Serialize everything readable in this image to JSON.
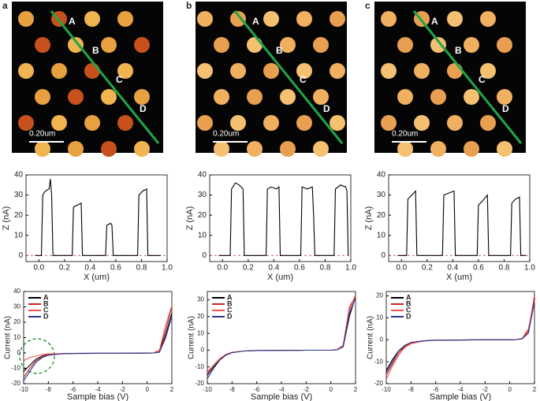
{
  "panels": [
    {
      "letter": "a",
      "points": [
        "A",
        "B",
        "C",
        "D"
      ],
      "scale_bar": "0.20um"
    },
    {
      "letter": "b",
      "points": [
        "A",
        "B",
        "C",
        "D"
      ],
      "scale_bar": "0.20um"
    },
    {
      "letter": "c",
      "points": [
        "A",
        "B",
        "C",
        "D"
      ],
      "scale_bar": "0.20um"
    }
  ],
  "chart_data": [
    {
      "type": "line",
      "xlabel": "X (um)",
      "ylabel": "Z (nA)",
      "color": "#000000",
      "baseline": 0,
      "x": [
        -0.03,
        0.02,
        0.03,
        0.05,
        0.08,
        0.09,
        0.1,
        0.11,
        0.26,
        0.27,
        0.3,
        0.33,
        0.34,
        0.52,
        0.53,
        0.56,
        0.57,
        0.58,
        0.77,
        0.78,
        0.81,
        0.84,
        0.85,
        0.95
      ],
      "values": [
        0,
        0,
        30,
        32,
        33,
        38,
        30,
        0,
        0,
        24,
        25,
        26,
        0,
        0,
        15,
        16,
        15,
        0,
        0,
        30,
        32,
        33,
        0,
        0
      ],
      "xlim": [
        -0.1,
        1.0
      ],
      "ylim": [
        -3,
        40
      ],
      "xticks": [
        {
          "value": 0,
          "label": "0.0"
        },
        0.2,
        0.4,
        0.6,
        0.8,
        {
          "value": 1,
          "label": "1.0"
        }
      ],
      "yticks": [
        0,
        10,
        20,
        30,
        40
      ]
    },
    {
      "type": "line",
      "xlabel": "X (um)",
      "ylabel": "Z (nA)",
      "color": "#000000",
      "baseline": 0,
      "x": [
        -0.03,
        0.06,
        0.07,
        0.1,
        0.13,
        0.16,
        0.17,
        0.34,
        0.35,
        0.38,
        0.42,
        0.44,
        0.45,
        0.61,
        0.62,
        0.66,
        0.7,
        0.71,
        0.72,
        0.87,
        0.88,
        0.92,
        0.96,
        0.97,
        0.98
      ],
      "values": [
        0,
        0,
        33,
        36,
        35,
        33,
        0,
        0,
        33,
        34,
        33,
        34,
        0,
        0,
        34,
        33,
        34,
        20,
        0,
        0,
        33,
        35,
        34,
        32,
        0
      ],
      "xlim": [
        -0.1,
        1.0
      ],
      "ylim": [
        -3,
        40
      ],
      "xticks": [
        {
          "value": 0,
          "label": "0.0"
        },
        0.2,
        0.4,
        0.6,
        0.8,
        {
          "value": 1,
          "label": "1.0"
        }
      ],
      "yticks": [
        0,
        10,
        20,
        30,
        40
      ]
    },
    {
      "type": "line",
      "xlabel": "X (um)",
      "ylabel": "Z (nA)",
      "color": "#000000",
      "baseline": 0,
      "x": [
        -0.03,
        0.04,
        0.05,
        0.08,
        0.11,
        0.12,
        0.32,
        0.33,
        0.37,
        0.41,
        0.42,
        0.59,
        0.6,
        0.63,
        0.67,
        0.68,
        0.85,
        0.86,
        0.89,
        0.92,
        0.93,
        0.97
      ],
      "values": [
        0,
        0,
        28,
        30,
        32,
        0,
        0,
        30,
        31,
        32,
        0,
        0,
        25,
        27,
        30,
        0,
        0,
        26,
        28,
        29,
        0,
        0
      ],
      "xlim": [
        -0.1,
        1.0
      ],
      "ylim": [
        -3,
        40
      ],
      "xticks": [
        {
          "value": 0,
          "label": "0.0"
        },
        0.2,
        0.4,
        0.6,
        0.8,
        {
          "value": 1,
          "label": "1.0"
        }
      ],
      "yticks": [
        0,
        10,
        20,
        30,
        40
      ]
    },
    {
      "type": "line",
      "xlabel": "Sample bias (V)",
      "ylabel": "Current (nA)",
      "legend": "upper left",
      "x": [
        -10,
        -9.5,
        -9,
        -8.5,
        -8,
        -7,
        -6,
        -4,
        -2,
        0,
        0.5,
        1,
        1.5,
        2
      ],
      "series": [
        {
          "name": "A",
          "color": "#000000",
          "values": [
            -12,
            -8,
            -4,
            -2,
            -1,
            -0.5,
            -0.3,
            -0.2,
            -0.2,
            -0.1,
            0,
            0.5,
            12,
            26
          ]
        },
        {
          "name": "B",
          "color": "#c62828",
          "values": [
            -16,
            -10,
            -5,
            -2.5,
            -1,
            -0.5,
            -0.3,
            -0.2,
            -0.2,
            -0.1,
            0,
            1,
            15,
            30
          ]
        },
        {
          "name": "C",
          "color": "#ef5350",
          "values": [
            -5,
            -3,
            -2,
            -1,
            -0.6,
            -0.4,
            -0.3,
            -0.2,
            -0.2,
            -0.1,
            0,
            2,
            18,
            31
          ]
        },
        {
          "name": "D",
          "color": "#283593",
          "values": [
            -18,
            -12,
            -6,
            -3,
            -1.5,
            -0.6,
            -0.3,
            -0.2,
            -0.2,
            -0.1,
            0,
            0.5,
            10,
            24
          ]
        }
      ],
      "xlim": [
        -10,
        2
      ],
      "ylim": [
        -20,
        40
      ],
      "xticks": [
        -10,
        -8,
        -6,
        -4,
        -2,
        0,
        2
      ],
      "yticks": [
        -20,
        -10,
        0,
        10,
        20,
        30,
        40
      ]
    },
    {
      "type": "line",
      "xlabel": "Sample bias (V)",
      "ylabel": "Current (nA)",
      "legend": "upper left",
      "x": [
        -10,
        -9.5,
        -9,
        -8.5,
        -8,
        -7,
        -6,
        -4,
        -2,
        0,
        0.5,
        1,
        1.5,
        2
      ],
      "series": [
        {
          "name": "A",
          "color": "#000000",
          "values": [
            -15,
            -10,
            -6,
            -3,
            -1.5,
            -0.5,
            -0.2,
            -0.1,
            0,
            0,
            0.2,
            2,
            20,
            32
          ]
        },
        {
          "name": "B",
          "color": "#c62828",
          "values": [
            -14,
            -9,
            -5,
            -3,
            -1.5,
            -0.5,
            -0.2,
            -0.1,
            0,
            0,
            0.3,
            3,
            24,
            33
          ]
        },
        {
          "name": "C",
          "color": "#ef5350",
          "values": [
            -13,
            -9,
            -5,
            -2.5,
            -1.2,
            -0.5,
            -0.2,
            -0.1,
            0,
            0,
            0.3,
            3,
            26,
            32
          ]
        },
        {
          "name": "D",
          "color": "#283593",
          "values": [
            -17,
            -11,
            -6,
            -3,
            -1.5,
            -0.5,
            -0.2,
            -0.1,
            0,
            0,
            0.2,
            2,
            22,
            31
          ]
        }
      ],
      "xlim": [
        -10,
        2
      ],
      "ylim": [
        -20,
        35
      ],
      "xticks": [
        -10,
        -8,
        -6,
        -4,
        -2,
        0,
        2
      ],
      "yticks": [
        -20,
        -10,
        0,
        10,
        20,
        30
      ]
    },
    {
      "type": "line",
      "xlabel": "Sample bias (V)",
      "ylabel": "Current (nA)",
      "legend": "upper left",
      "x": [
        -10,
        -9.5,
        -9,
        -8.5,
        -8,
        -7,
        -6,
        -4,
        -2,
        0,
        0.5,
        1,
        1.5,
        2
      ],
      "series": [
        {
          "name": "A",
          "color": "#000000",
          "values": [
            -14,
            -9,
            -5,
            -3,
            -1.5,
            -0.5,
            -0.2,
            -0.1,
            0,
            0,
            0.1,
            0.5,
            3,
            19
          ]
        },
        {
          "name": "B",
          "color": "#c62828",
          "values": [
            -16,
            -11,
            -6,
            -3,
            -1.5,
            -0.5,
            -0.2,
            -0.1,
            0,
            0,
            0.1,
            0.5,
            4,
            20
          ]
        },
        {
          "name": "C",
          "color": "#ef5350",
          "values": [
            -18,
            -12,
            -7,
            -3.5,
            -1.8,
            -0.6,
            -0.2,
            -0.1,
            0,
            0,
            0.1,
            0.6,
            5,
            18
          ]
        },
        {
          "name": "D",
          "color": "#283593",
          "values": [
            -15,
            -10,
            -5,
            -2.5,
            -1.2,
            -0.5,
            -0.2,
            -0.1,
            0,
            0,
            0.1,
            0.4,
            3,
            17
          ]
        }
      ],
      "xlim": [
        -10,
        2
      ],
      "ylim": [
        -20,
        22
      ],
      "xticks": [
        -10,
        -8,
        -6,
        -4,
        -2,
        0,
        2
      ],
      "yticks": [
        -20,
        -10,
        0,
        10,
        20
      ]
    }
  ]
}
